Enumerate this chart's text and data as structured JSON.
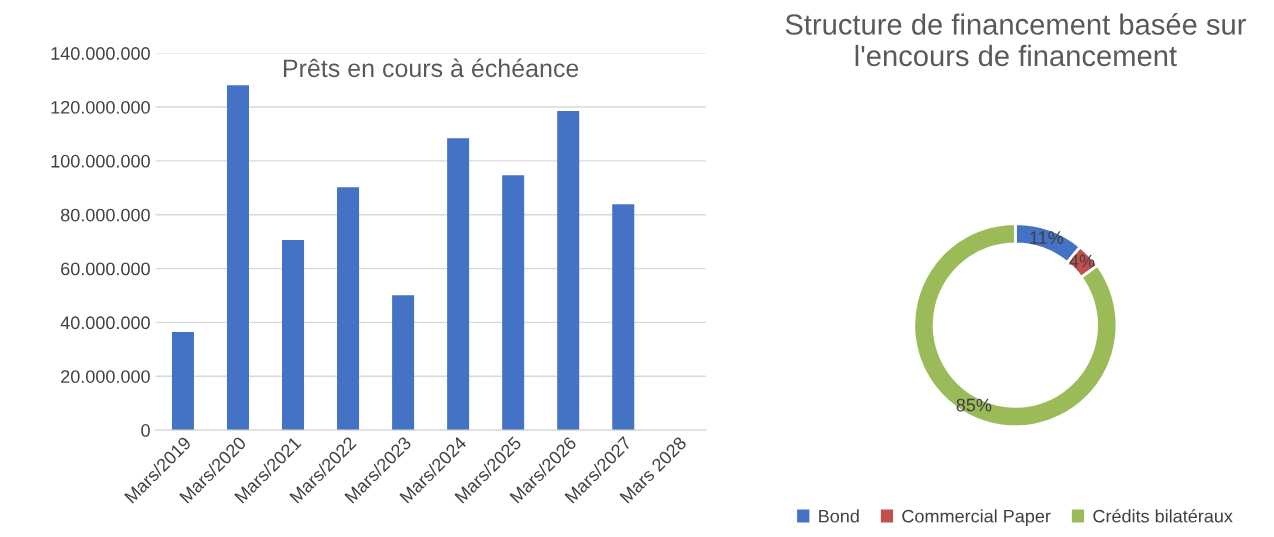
{
  "chart_data": [
    {
      "type": "bar",
      "title": "Prêts en cours à échéance",
      "categories": [
        "Mars/2019",
        "Mars/2020",
        "Mars/2021",
        "Mars/2022",
        "Mars/2023",
        "Mars/2024",
        "Mars/2025",
        "Mars/2026",
        "Mars/2027",
        "Mars 2028"
      ],
      "values": [
        36400000,
        128100000,
        70600000,
        90200000,
        50100000,
        108400000,
        94700000,
        118500000,
        83900000,
        null
      ],
      "color": "#4472c4",
      "ylim": [
        0,
        140000000
      ],
      "yticks": [
        0,
        {
          "value": 20000000,
          "label": "20.000.000"
        },
        {
          "value": 40000000,
          "label": "40.000.000"
        },
        {
          "value": 60000000,
          "label": "60.000.000"
        },
        {
          "value": 80000000,
          "label": "80.000.000"
        },
        {
          "value": 100000000,
          "label": "100.000.000"
        },
        {
          "value": 120000000,
          "label": "120.000.000"
        },
        {
          "value": 140000000,
          "label": "140.000.000"
        }
      ],
      "grid": "y"
    },
    {
      "type": "donut",
      "title": "Structure de financement basée sur l'encours de financement",
      "categories": [
        "Bond",
        "Commercial Paper",
        "Crédits bilatéraux"
      ],
      "values": [
        11,
        4,
        85
      ],
      "value_labels": [
        "11%",
        "4%",
        "85%"
      ],
      "colors": [
        "#4472c4",
        "#c0504d",
        "#9bbb59"
      ],
      "legend": "bottom"
    }
  ]
}
